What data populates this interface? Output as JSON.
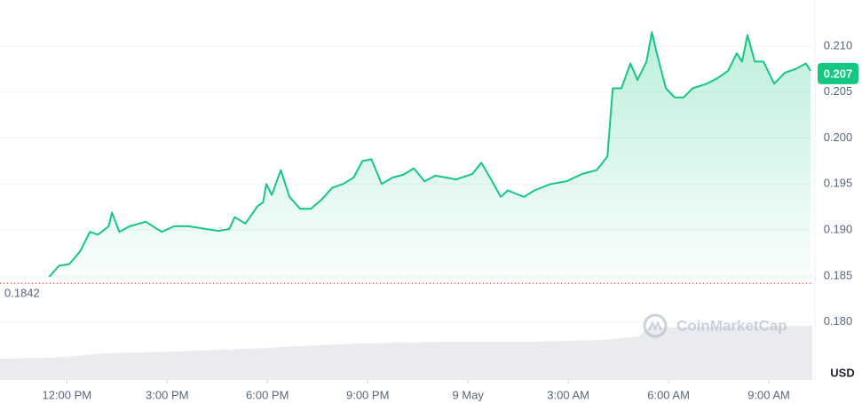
{
  "chart_data": {
    "type": "line",
    "color": "#16c784",
    "x": [
      -0.53,
      -0.24,
      0.08,
      0.4,
      0.69,
      0.93,
      1.25,
      1.35,
      1.57,
      1.88,
      2.36,
      2.84,
      3.21,
      3.64,
      4.17,
      4.54,
      4.86,
      5.02,
      5.34,
      5.71,
      5.87,
      5.97,
      6.13,
      6.4,
      6.66,
      6.98,
      7.3,
      7.62,
      7.94,
      8.26,
      8.58,
      8.84,
      9.11,
      9.42,
      9.74,
      10.06,
      10.38,
      10.7,
      11.02,
      11.34,
      11.65,
      12.13,
      12.4,
      12.66,
      12.98,
      13.19,
      13.67,
      13.99,
      14.47,
      14.95,
      15.42,
      15.85,
      16.17,
      16.33,
      16.59,
      16.86,
      17.07,
      17.34,
      17.5,
      17.65,
      17.92,
      18.19,
      18.45,
      18.72,
      19.14,
      19.46,
      19.78,
      20.04,
      20.2,
      20.36,
      20.58,
      20.84,
      21.16,
      21.48,
      21.8,
      22.11,
      22.25
    ],
    "values": [
      0.1849,
      0.1861,
      0.1863,
      0.1877,
      0.1898,
      0.1895,
      0.1904,
      0.1919,
      0.1898,
      0.1904,
      0.1909,
      0.1898,
      0.1904,
      0.1904,
      0.1901,
      0.1899,
      0.1901,
      0.1914,
      0.1907,
      0.1926,
      0.193,
      0.195,
      0.1938,
      0.1965,
      0.1936,
      0.1923,
      0.1923,
      0.1933,
      0.1946,
      0.195,
      0.1957,
      0.1975,
      0.1977,
      0.195,
      0.1957,
      0.196,
      0.1967,
      0.1953,
      0.1959,
      0.1957,
      0.1955,
      0.1961,
      0.1973,
      0.1957,
      0.1936,
      0.1943,
      0.1936,
      0.1943,
      0.195,
      0.1953,
      0.1961,
      0.1965,
      0.198,
      0.2054,
      0.2054,
      0.2081,
      0.2063,
      0.2083,
      0.2115,
      0.2092,
      0.2054,
      0.2044,
      0.2044,
      0.2054,
      0.2059,
      0.2065,
      0.2073,
      0.2092,
      0.2083,
      0.2112,
      0.2083,
      0.2083,
      0.2059,
      0.2071,
      0.2075,
      0.2081,
      0.2073
    ],
    "xlim": [
      -2,
      22.3
    ],
    "xticks": [
      {
        "value": 0,
        "label": "12:00 PM"
      },
      {
        "value": 3,
        "label": "3:00 PM"
      },
      {
        "value": 6,
        "label": "6:00 PM"
      },
      {
        "value": 9,
        "label": "9:00 PM"
      },
      {
        "value": 12,
        "label": "9 May"
      },
      {
        "value": 15,
        "label": "3:00 AM"
      },
      {
        "value": 18,
        "label": "6:00 AM"
      },
      {
        "value": 21,
        "label": "9:00 AM"
      }
    ],
    "ylim": [
      0.1737,
      0.215
    ],
    "yticks": [
      {
        "value": 0.18,
        "label": "0.180"
      },
      {
        "value": 0.185,
        "label": "0.185"
      },
      {
        "value": 0.19,
        "label": "0.190"
      },
      {
        "value": 0.195,
        "label": "0.195"
      },
      {
        "value": 0.2,
        "label": "0.200"
      },
      {
        "value": 0.205,
        "label": "0.205"
      },
      {
        "value": 0.21,
        "label": "0.210"
      }
    ],
    "grid": true,
    "reference_value": 0.1842,
    "current_value": 0.207,
    "watermark": "CoinMarketCap",
    "currency": "USD"
  }
}
